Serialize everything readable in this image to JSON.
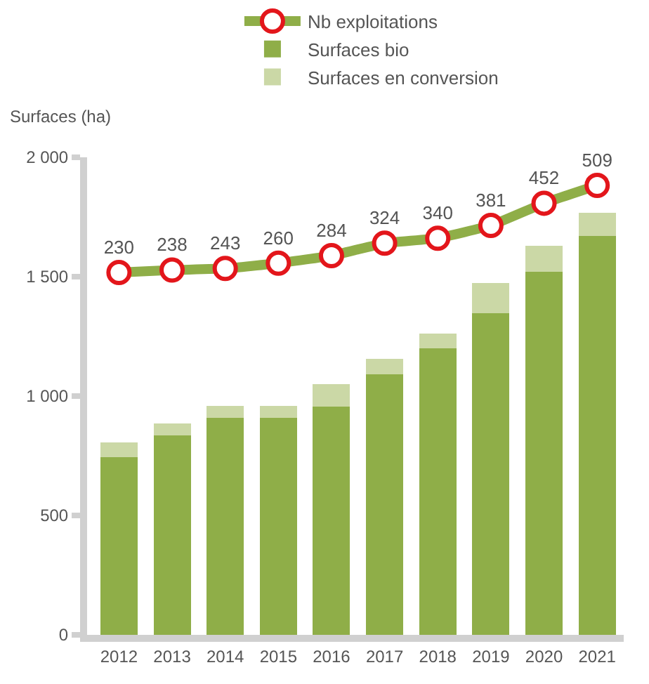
{
  "chart_data": {
    "type": "bar",
    "stacked": true,
    "ylabel": "Surfaces (ha)",
    "categories": [
      "2012",
      "2013",
      "2014",
      "2015",
      "2016",
      "2017",
      "2018",
      "2019",
      "2020",
      "2021"
    ],
    "series": [
      {
        "name": "Surfaces bio",
        "color": "#8fae48",
        "values": [
          744,
          836,
          910,
          910,
          956,
          1092,
          1200,
          1347,
          1521,
          1670
        ]
      },
      {
        "name": "Surfaces en conversion",
        "color": "#cbd8a6",
        "values": [
          61,
          50,
          50,
          50,
          95,
          63,
          63,
          127,
          109,
          99
        ]
      },
      {
        "name": "Nb exploitations",
        "type": "line",
        "axis": "y2",
        "color": "#8fae48",
        "marker": "circle",
        "data_labels": true,
        "values": [
          230,
          238,
          243,
          260,
          284,
          324,
          340,
          381,
          452,
          509
        ]
      }
    ],
    "ylim": [
      0,
      2000
    ],
    "yticks": [
      {
        "value": 0,
        "label": "0"
      },
      {
        "value": 500,
        "label": "500"
      },
      {
        "value": 1000,
        "label": "1 000"
      },
      {
        "value": 1500,
        "label": "1 500"
      },
      {
        "value": 2000,
        "label": "2 000"
      }
    ],
    "y2lim": [
      -930,
      599
    ],
    "legend": "top"
  }
}
